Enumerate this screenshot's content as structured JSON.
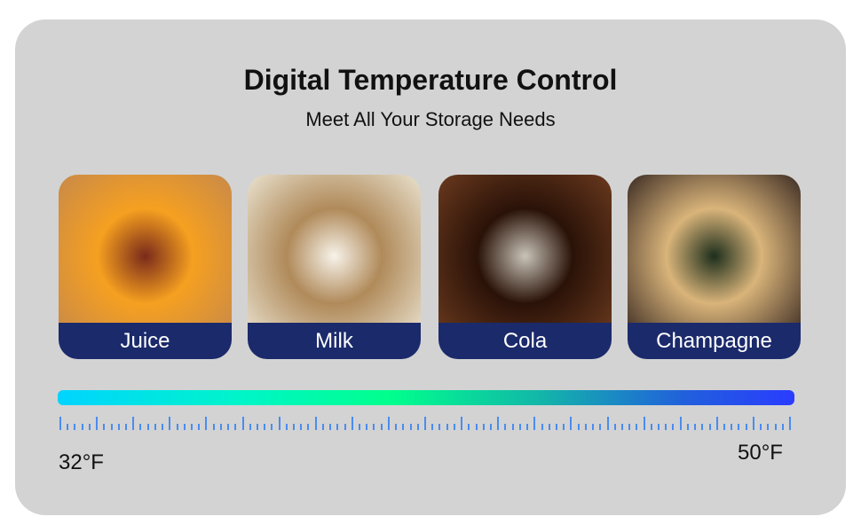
{
  "header": {
    "title": "Digital Temperature Control",
    "subtitle": "Meet All Your Storage Needs"
  },
  "cards": [
    {
      "label": "Juice",
      "image": "juice-glasses-photo",
      "colors": [
        "#c8894a",
        "#f5a020",
        "#7a2a1a"
      ]
    },
    {
      "label": "Milk",
      "image": "milk-bottle-photo",
      "colors": [
        "#e9e2cf",
        "#b08a5a",
        "#f7f3ea"
      ]
    },
    {
      "label": "Cola",
      "image": "cola-glass-photo",
      "colors": [
        "#6b3a1e",
        "#2a1208",
        "#c9c4b8"
      ]
    },
    {
      "label": "Champagne",
      "image": "champagne-bottle-photo",
      "colors": [
        "#3a2a22",
        "#d9b47a",
        "#1d2e1c"
      ]
    }
  ],
  "range": {
    "min_label": "32°F",
    "max_label": "50°F"
  },
  "colors": {
    "label_band": "#1b2a6b",
    "gradient": [
      "#00d4ff",
      "#00ff8c",
      "#2a3cff"
    ],
    "ticks": "#4a8cf0"
  }
}
